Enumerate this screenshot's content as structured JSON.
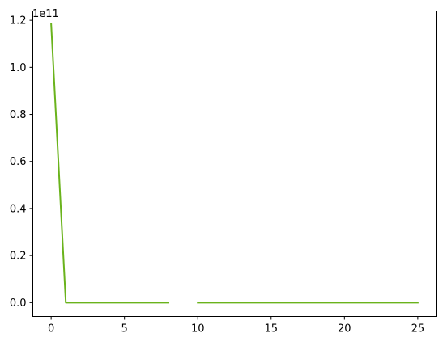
{
  "chart_data": {
    "type": "line",
    "title": "",
    "xlabel": "",
    "ylabel": "",
    "y_offset_label": "1e11",
    "xlim": [
      -1.25,
      26.25
    ],
    "ylim": [
      -5.9,
      124.0
    ],
    "y_scale_factor": 100000000000,
    "xticks": [
      0,
      5,
      10,
      15,
      20,
      25
    ],
    "yticks": [
      0.0,
      0.2,
      0.4,
      0.6,
      0.8,
      1.0,
      1.2
    ],
    "xtick_labels": [
      "0",
      "5",
      "10",
      "15",
      "20",
      "25"
    ],
    "ytick_labels": [
      "0.0",
      "0.2",
      "0.4",
      "0.6",
      "0.8",
      "1.0",
      "1.2"
    ],
    "grid": false,
    "legend": "none",
    "series": [
      {
        "color": "#6ab31c",
        "x": [
          0,
          1,
          2,
          3,
          4,
          5,
          6,
          7,
          8,
          9,
          10,
          11,
          12,
          13,
          14,
          15,
          16,
          17,
          18,
          19,
          20,
          21,
          22,
          23,
          24,
          25
        ],
        "y": [
          118.5,
          0.0,
          0.0,
          0.0,
          0.0,
          0.0,
          0.0,
          0.0,
          0.0,
          null,
          0.0,
          0.0,
          0.0,
          0.0,
          0.0,
          0.0,
          0.0,
          0.0,
          0.0,
          0.0,
          0.0,
          0.0,
          0.0,
          0.0,
          0.0,
          0.0
        ]
      }
    ]
  }
}
